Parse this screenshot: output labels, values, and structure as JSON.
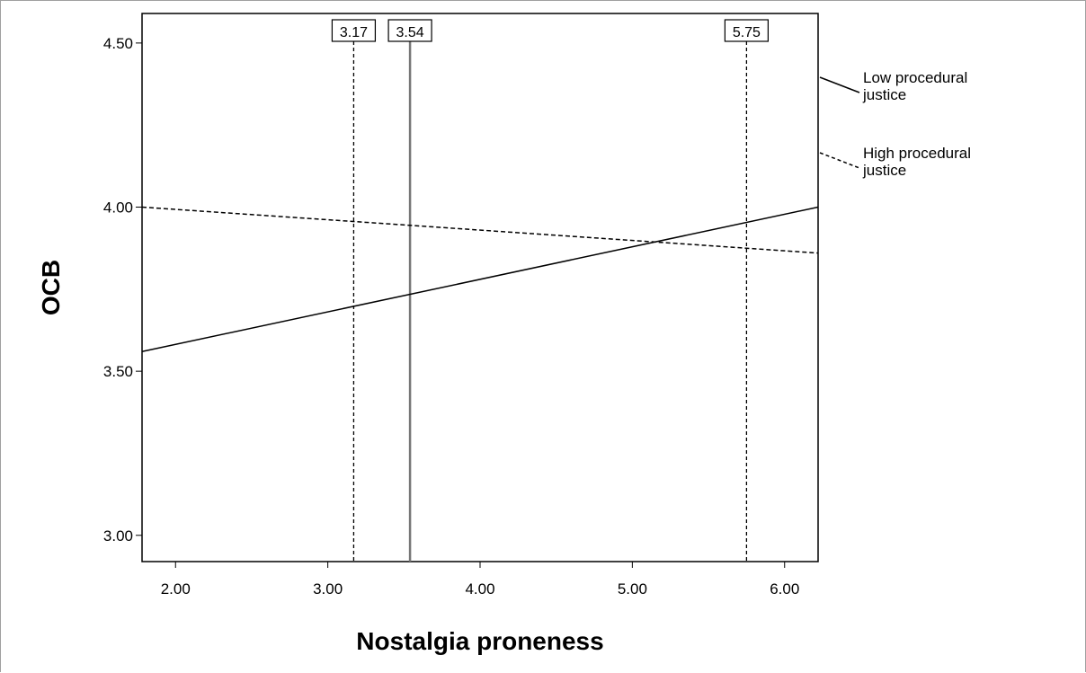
{
  "chart_data": {
    "type": "line",
    "xlabel": "Nostalgia proneness",
    "ylabel": "OCB",
    "xlim": [
      1.78,
      6.22
    ],
    "ylim": [
      2.92,
      4.59
    ],
    "x_ticks": [
      {
        "value": 2.0,
        "label": "2.00"
      },
      {
        "value": 3.0,
        "label": "3.00"
      },
      {
        "value": 4.0,
        "label": "4.00"
      },
      {
        "value": 5.0,
        "label": "5.00"
      },
      {
        "value": 6.0,
        "label": "6.00"
      }
    ],
    "y_ticks": [
      {
        "value": 3.0,
        "label": "3.00"
      },
      {
        "value": 3.5,
        "label": "3.50"
      },
      {
        "value": 4.0,
        "label": "4.00"
      },
      {
        "value": 4.5,
        "label": "4.50"
      }
    ],
    "series": [
      {
        "name": "Low procedural justice",
        "style": "solid",
        "x": [
          1.78,
          6.22
        ],
        "y": [
          3.56,
          4.0
        ]
      },
      {
        "name": "High procedural justice",
        "style": "dashed",
        "x": [
          1.78,
          6.22
        ],
        "y": [
          4.0,
          3.86
        ]
      }
    ],
    "reference_lines": [
      {
        "x": 3.17,
        "label": "3.17",
        "style": "dashed"
      },
      {
        "x": 3.54,
        "label": "3.54",
        "style": "solid"
      },
      {
        "x": 5.75,
        "label": "5.75",
        "style": "dashed"
      }
    ],
    "legend_position": "right",
    "grid": false,
    "colors": {
      "line": "#000000",
      "reference_solid": "#777777"
    }
  }
}
